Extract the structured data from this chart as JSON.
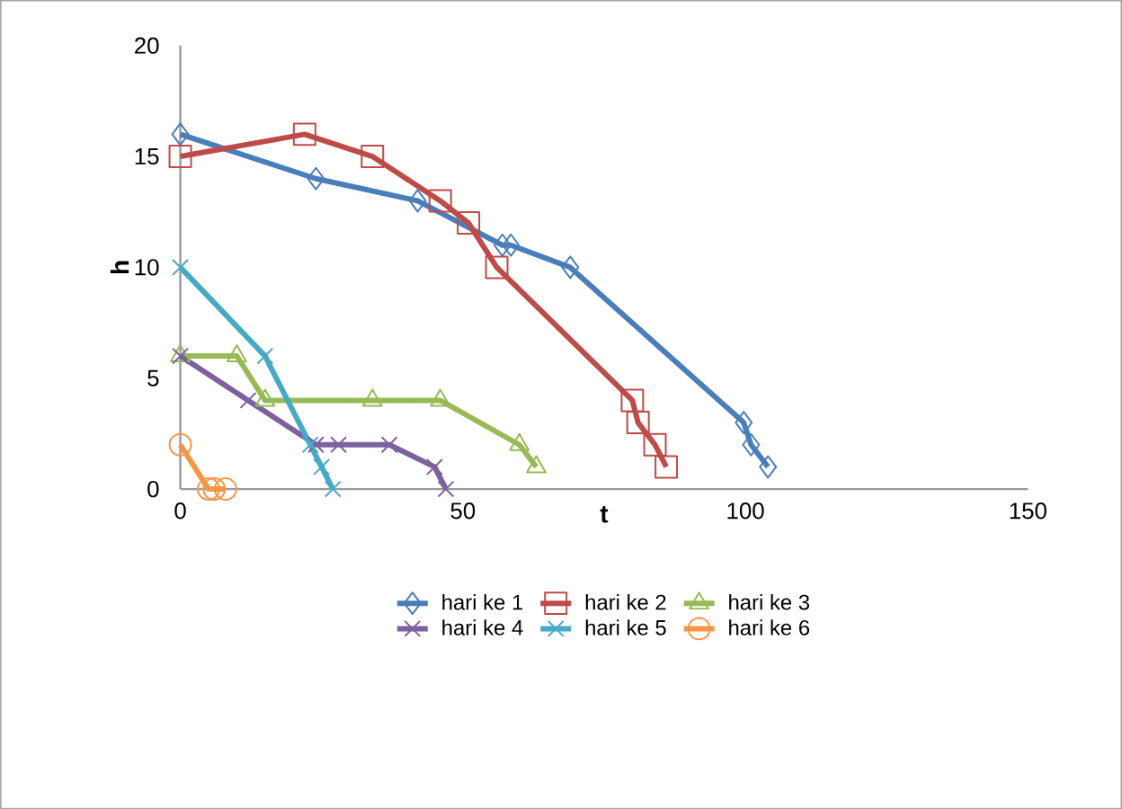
{
  "chart_data": {
    "type": "line",
    "xlabel": "t",
    "ylabel": "h",
    "xlim": [
      0,
      150
    ],
    "xticks": [
      0,
      50,
      100,
      150
    ],
    "ylim": [
      0,
      20
    ],
    "yticks": [
      0,
      5,
      10,
      15,
      20
    ],
    "legend": "bottom",
    "line_style": "solid",
    "series": [
      {
        "name": "hari ke 1",
        "color": "#4a7ebb",
        "marker": "diamond",
        "x": [
          0,
          24,
          42,
          57,
          58.5,
          69,
          99.7,
          101,
          104
        ],
        "values": [
          16,
          14,
          13,
          11,
          11,
          10,
          3,
          2,
          1
        ]
      },
      {
        "name": "hari ke 2",
        "color": "#be4b48",
        "marker": "square",
        "x": [
          0,
          22,
          34,
          46,
          51,
          56,
          80,
          81,
          84,
          86
        ],
        "values": [
          15,
          16,
          15,
          13,
          12,
          10,
          4,
          3,
          2,
          1
        ]
      },
      {
        "name": "hari ke 3",
        "color": "#98b954",
        "marker": "triangle",
        "x": [
          0,
          10,
          15,
          34,
          46,
          60,
          63
        ],
        "values": [
          6,
          6,
          4,
          4,
          4,
          2,
          1
        ]
      },
      {
        "name": "hari ke 4",
        "color": "#7d60a0",
        "marker": "cross",
        "x": [
          0,
          12,
          24,
          28,
          37,
          45,
          47
        ],
        "values": [
          6,
          4,
          2,
          2,
          2,
          1,
          0
        ]
      },
      {
        "name": "hari ke 5",
        "color": "#46aac5",
        "marker": "cross",
        "x": [
          0,
          15,
          23,
          25,
          27
        ],
        "values": [
          10,
          6,
          2,
          1,
          0
        ]
      },
      {
        "name": "hari ke 6",
        "color": "#f79646",
        "marker": "circle",
        "x": [
          0,
          5,
          6,
          8
        ],
        "values": [
          2,
          0,
          0,
          0
        ]
      }
    ]
  }
}
